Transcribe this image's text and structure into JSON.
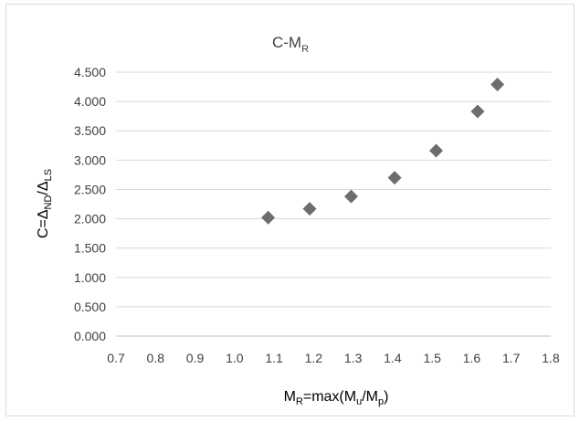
{
  "chart_data": {
    "type": "scatter",
    "title": {
      "main": "C-M",
      "sub": "R"
    },
    "xlabel": {
      "p1": "M",
      "s1": "R",
      "p2": "=max(M",
      "s2": "u",
      "p3": "/M",
      "s3": "p",
      "p4": ")"
    },
    "ylabel": {
      "p1": "C=Δ",
      "s1": "ND",
      "p2": "/Δ",
      "s2": "LS"
    },
    "xlim": [
      0.7,
      1.8
    ],
    "ylim": [
      0.0,
      4.5
    ],
    "x_ticks": [
      "0.7",
      "0.8",
      "0.9",
      "1.0",
      "1.1",
      "1.2",
      "1.3",
      "1.4",
      "1.5",
      "1.6",
      "1.7",
      "1.8"
    ],
    "y_ticks": [
      "0.000",
      "0.500",
      "1.000",
      "1.500",
      "2.000",
      "2.500",
      "3.000",
      "3.500",
      "4.000",
      "4.500"
    ],
    "grid": "horizontal",
    "marker_color": "#6d6d6d",
    "grid_color": "#d9d9d9",
    "series": [
      {
        "marker": "diamond",
        "points": [
          {
            "x": 1.085,
            "y": 2.02
          },
          {
            "x": 1.19,
            "y": 2.17
          },
          {
            "x": 1.295,
            "y": 2.38
          },
          {
            "x": 1.405,
            "y": 2.7
          },
          {
            "x": 1.51,
            "y": 3.16
          },
          {
            "x": 1.615,
            "y": 3.83
          },
          {
            "x": 1.665,
            "y": 4.29
          }
        ]
      }
    ]
  }
}
